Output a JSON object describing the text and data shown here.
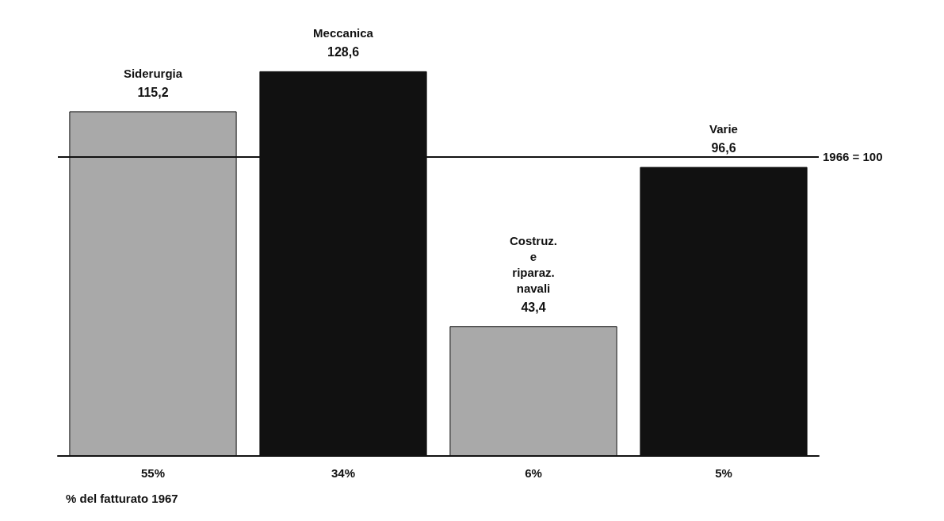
{
  "chart_data": {
    "type": "bar",
    "categories": [
      "55%",
      "34%",
      "6%",
      "5%"
    ],
    "values": [
      115.2,
      128.6,
      43.4,
      96.6
    ],
    "value_labels": [
      "115,2",
      "128,6",
      "43,4",
      "96,6"
    ],
    "colors": [
      "#a9a9a9",
      "#111111",
      "#a9a9a9",
      "#111111"
    ],
    "ref_lines": [
      {
        "axis": "y",
        "value": 100,
        "label": "1966 = 100",
        "color": "#111111"
      }
    ],
    "annotations": [
      {
        "text": "Siderurgia",
        "x": "55%",
        "y": 115.2
      },
      {
        "text": "Meccanica",
        "x": "34%",
        "y": 128.6
      },
      {
        "text": "Costruz.\ne\nriparaz.\nnavali",
        "x": "6%",
        "y": 43.4
      },
      {
        "text": "Varie",
        "x": "5%",
        "y": 96.6
      },
      "% del fatturato 1967"
    ],
    "grid": false
  }
}
